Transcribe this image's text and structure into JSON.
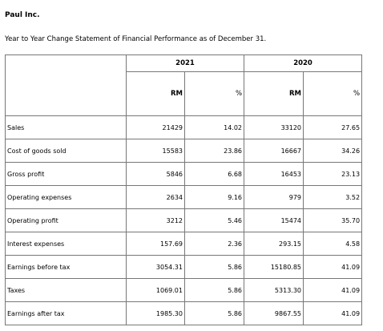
{
  "header": {
    "company": "Paul Inc.",
    "subtitle": "Year to Year Change Statement of Financial Performance as of December 31."
  },
  "table": {
    "years": [
      "2021",
      "2020"
    ],
    "units": [
      "RM",
      "%",
      "RM",
      "%"
    ],
    "rows": [
      {
        "label": "Sales",
        "cells": [
          "21429",
          "14.02",
          "33120",
          "27.65"
        ]
      },
      {
        "label": "Cost of goods sold",
        "cells": [
          "15583",
          "23.86",
          "16667",
          "34.26"
        ]
      },
      {
        "label": "Gross profit",
        "cells": [
          "5846",
          "6.68",
          "16453",
          "23.13"
        ]
      },
      {
        "label": "Operating expenses",
        "cells": [
          "2634",
          "9.16",
          "979",
          "3.52"
        ]
      },
      {
        "label": "Operating profit",
        "cells": [
          "3212",
          "5.46",
          "15474",
          "35.70"
        ]
      },
      {
        "label": "Interest expenses",
        "cells": [
          "157.69",
          "2.36",
          "293.15",
          "4.58"
        ]
      },
      {
        "label": "Earnings before tax",
        "cells": [
          "3054.31",
          "5.86",
          "15180.85",
          "41.09"
        ]
      },
      {
        "label": "Taxes",
        "cells": [
          "1069.01",
          "5.86",
          "5313.30",
          "41.09"
        ]
      },
      {
        "label": "Earnings after tax",
        "cells": [
          "1985.30",
          "5.86",
          "9867.55",
          "41.09"
        ]
      }
    ]
  }
}
